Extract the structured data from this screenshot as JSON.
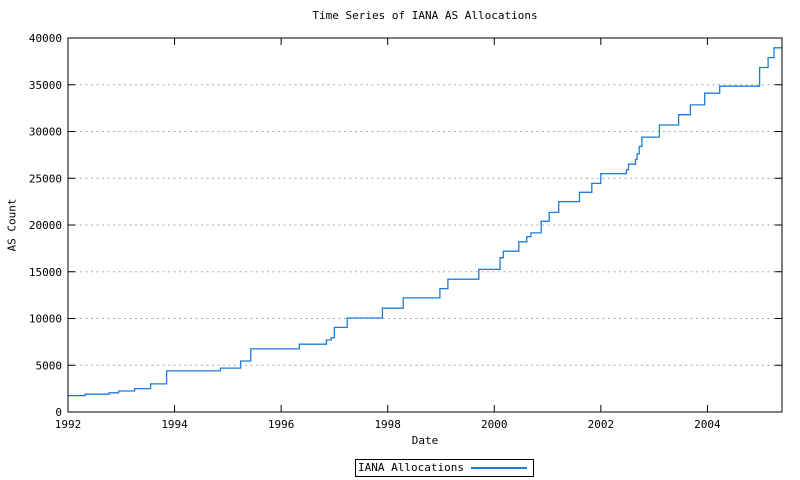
{
  "chart_data": {
    "type": "line",
    "subtype": "steps",
    "title": "Time Series of IANA AS Allocations",
    "xlabel": "Date",
    "ylabel": "AS Count",
    "xlim": [
      1992,
      2005.4
    ],
    "ylim": [
      0,
      40000
    ],
    "x_ticks": [
      1992,
      1994,
      1996,
      1998,
      2000,
      2002,
      2004
    ],
    "y_ticks": [
      0,
      5000,
      10000,
      15000,
      20000,
      25000,
      30000,
      35000,
      40000
    ],
    "grid": "horizontal-dotted",
    "grid_color": "#a8a8a8",
    "axis_color": "#000000",
    "background_color": "#ffffff",
    "legend_position": "bottom-center-outside",
    "series": [
      {
        "name": "IANA Allocations",
        "color": "#1c7cd8",
        "points": [
          [
            1992.0,
            1750
          ],
          [
            1992.32,
            1900
          ],
          [
            1992.77,
            2050
          ],
          [
            1992.95,
            2250
          ],
          [
            1993.25,
            2500
          ],
          [
            1993.55,
            3000
          ],
          [
            1993.85,
            4400
          ],
          [
            1994.86,
            4700
          ],
          [
            1995.24,
            5450
          ],
          [
            1995.43,
            6750
          ],
          [
            1996.34,
            7250
          ],
          [
            1996.85,
            7700
          ],
          [
            1996.94,
            7950
          ],
          [
            1997.0,
            9050
          ],
          [
            1997.24,
            10050
          ],
          [
            1997.9,
            11100
          ],
          [
            1998.29,
            12200
          ],
          [
            1998.98,
            13200
          ],
          [
            1999.13,
            14200
          ],
          [
            1999.71,
            15250
          ],
          [
            2000.11,
            16500
          ],
          [
            2000.17,
            17200
          ],
          [
            2000.46,
            18200
          ],
          [
            2000.61,
            18750
          ],
          [
            2000.69,
            19150
          ],
          [
            2000.88,
            20400
          ],
          [
            2001.03,
            21350
          ],
          [
            2001.21,
            22500
          ],
          [
            2001.6,
            23500
          ],
          [
            2001.83,
            24450
          ],
          [
            2002.0,
            25500
          ],
          [
            2002.48,
            25900
          ],
          [
            2002.52,
            26500
          ],
          [
            2002.65,
            27000
          ],
          [
            2002.68,
            27600
          ],
          [
            2002.72,
            28400
          ],
          [
            2002.77,
            29400
          ],
          [
            2003.1,
            30700
          ],
          [
            2003.46,
            31800
          ],
          [
            2003.68,
            32850
          ],
          [
            2003.95,
            34100
          ],
          [
            2004.23,
            34850
          ],
          [
            2004.98,
            36850
          ],
          [
            2005.14,
            37900
          ],
          [
            2005.25,
            38950
          ]
        ]
      }
    ]
  }
}
